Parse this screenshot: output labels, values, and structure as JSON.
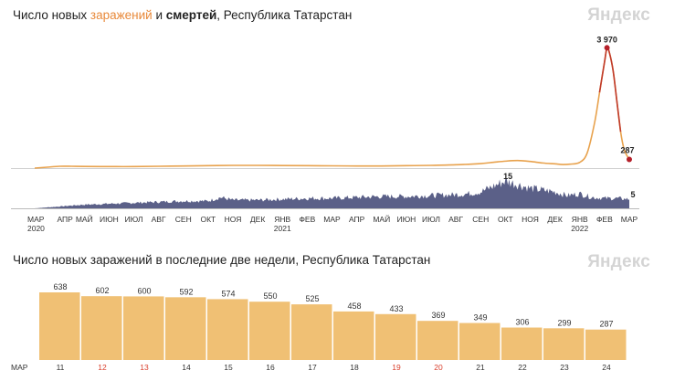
{
  "chart_data": [
    {
      "type": "line",
      "title_parts": {
        "prefix": "Число новых ",
        "infections": "заражений",
        "and": " и ",
        "deaths": "смертей",
        "suffix": ", Республика Татарстан"
      },
      "colors": {
        "infections": "#e8a24d",
        "infections_peak": "#c03a2a",
        "deaths": "#5b6088",
        "peak_dot": "#b5202a"
      },
      "month_ticks": [
        "МАР",
        "АПР",
        "МАЙ",
        "ИЮН",
        "ИЮЛ",
        "АВГ",
        "СЕН",
        "ОКТ",
        "НОЯ",
        "ДЕК",
        "ЯНВ",
        "ФЕВ",
        "МАР",
        "АПР",
        "МАЙ",
        "ИЮН",
        "ИЮЛ",
        "АВГ",
        "СЕН",
        "ОКТ",
        "НОЯ",
        "ДЕК",
        "ЯНВ",
        "ФЕВ",
        "МАР"
      ],
      "year_labels": [
        {
          "year": "2020",
          "month_index": 0
        },
        {
          "year": "2021",
          "month_index": 10
        },
        {
          "year": "2022",
          "month_index": 22
        }
      ],
      "infections_series": {
        "name": "заражений",
        "x_month": [
          0,
          0.5,
          1,
          1.5,
          2,
          3,
          4,
          5,
          6,
          7,
          8,
          9,
          10,
          11,
          12,
          13,
          14,
          15,
          16,
          17,
          18,
          18.5,
          19,
          19.5,
          20,
          20.5,
          21,
          21.3,
          21.6,
          22,
          22.3,
          22.6,
          22.8,
          23.0,
          23.1,
          23.2,
          23.35,
          23.5,
          23.65,
          23.8,
          24.0
        ],
        "values": [
          0,
          30,
          60,
          60,
          55,
          50,
          50,
          60,
          70,
          80,
          90,
          90,
          85,
          80,
          75,
          70,
          70,
          80,
          90,
          110,
          150,
          190,
          230,
          250,
          220,
          170,
          140,
          120,
          130,
          190,
          500,
          1500,
          2500,
          3500,
          3970,
          3800,
          3200,
          2200,
          1200,
          600,
          287
        ],
        "peak": {
          "x_month": 23.1,
          "value": 3970,
          "label": "3 970"
        },
        "last": {
          "x_month": 24.0,
          "value": 287,
          "label": "287"
        },
        "ylim": [
          0,
          4100
        ]
      },
      "deaths_series": {
        "name": "смертей",
        "x_month": [
          0,
          1,
          2,
          3,
          4,
          5,
          6,
          7,
          7.5,
          8,
          9,
          10,
          11,
          12,
          13,
          14,
          15,
          16,
          17,
          17.5,
          18,
          18.5,
          19,
          19.5,
          20,
          21,
          21.5,
          22,
          22.5,
          23,
          23.5,
          24
        ],
        "values": [
          0,
          1,
          2,
          2.5,
          3,
          3.5,
          4,
          4,
          6,
          4.5,
          4.5,
          5,
          5.5,
          5.5,
          6,
          6.5,
          6.5,
          7,
          7.5,
          8,
          9,
          12,
          15,
          13,
          11,
          9,
          7,
          8,
          6,
          5.5,
          5.5,
          5
        ],
        "peak": {
          "x_month": 19.1,
          "value": 15,
          "label": "15"
        },
        "last": {
          "x_month": 24.0,
          "value": 5,
          "label": "5"
        },
        "ylim": [
          0,
          16
        ]
      },
      "logo": "Яндекс"
    },
    {
      "type": "bar",
      "title": "Число новых заражений в последние две недели, Республика Татарстан",
      "month_label": "МАР",
      "categories": [
        "11",
        "12",
        "13",
        "14",
        "15",
        "16",
        "17",
        "18",
        "19",
        "20",
        "21",
        "22",
        "23",
        "24"
      ],
      "weekend": [
        false,
        true,
        true,
        false,
        false,
        false,
        false,
        false,
        true,
        true,
        false,
        false,
        false,
        false
      ],
      "values": [
        638,
        602,
        600,
        592,
        574,
        550,
        525,
        458,
        433,
        369,
        349,
        306,
        299,
        287
      ],
      "ylim": [
        0,
        660
      ],
      "colors": {
        "bar": "#f0c074",
        "weekday_tick": "#333333",
        "weekend_tick": "#d9412e"
      },
      "logo": "Яндекс"
    }
  ]
}
